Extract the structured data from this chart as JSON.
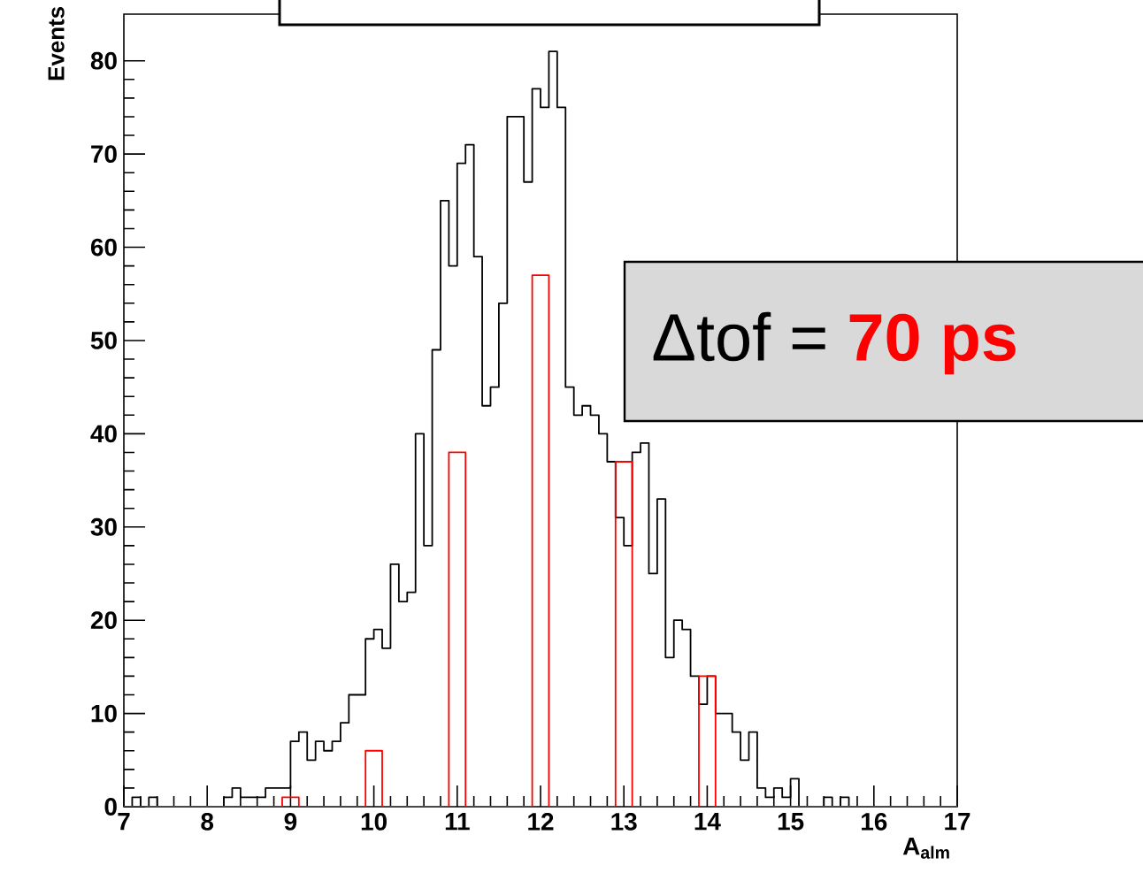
{
  "chart_data": {
    "type": "histogram",
    "xlabel": "A$_{alm}$",
    "ylabel": "Events",
    "xlim": [
      7,
      17
    ],
    "ylim": [
      0,
      85
    ],
    "xticks": [
      7,
      8,
      9,
      10,
      11,
      12,
      13,
      14,
      15,
      16,
      17
    ],
    "yticks": [
      0,
      10,
      20,
      30,
      40,
      50,
      60,
      70,
      80
    ],
    "grid": false,
    "marker": "none",
    "annotations": [
      "Δtof =",
      "70 ps"
    ],
    "bins": [
      7.0,
      7.1,
      7.2,
      7.3,
      7.4,
      7.5,
      7.6,
      7.7,
      7.8,
      7.9,
      8.0,
      8.1,
      8.2,
      8.3,
      8.4,
      8.5,
      8.6,
      8.7,
      8.8,
      8.9,
      9.0,
      9.1,
      9.2,
      9.3,
      9.4,
      9.5,
      9.6,
      9.7,
      9.8,
      9.9,
      10.0,
      10.1,
      10.2,
      10.3,
      10.4,
      10.5,
      10.6,
      10.7,
      10.8,
      10.9,
      11.0,
      11.1,
      11.2,
      11.3,
      11.4,
      11.5,
      11.6,
      11.7,
      11.8,
      11.9,
      12.0,
      12.1,
      12.2,
      12.3,
      12.4,
      12.5,
      12.6,
      12.7,
      12.8,
      12.9,
      13.0,
      13.1,
      13.2,
      13.3,
      13.4,
      13.5,
      13.6,
      13.7,
      13.8,
      13.9,
      14.0,
      14.1,
      14.2,
      14.3,
      14.4,
      14.5,
      14.6,
      14.7,
      14.8,
      14.9,
      15.0,
      15.1,
      15.2,
      15.3,
      15.4,
      15.5,
      15.6,
      15.7,
      15.8,
      15.9,
      16.0,
      16.1,
      16.2,
      16.3,
      16.4,
      16.5,
      16.6,
      16.7,
      16.8,
      16.9,
      17.0
    ],
    "series": [
      {
        "color": "#000000",
        "values": [
          0,
          1,
          0,
          1,
          0,
          0,
          0,
          0,
          0,
          0,
          0,
          0,
          1,
          2,
          1,
          1,
          1,
          2,
          2,
          2,
          7,
          8,
          5,
          7,
          6,
          7,
          9,
          12,
          12,
          18,
          19,
          17,
          26,
          22,
          23,
          40,
          28,
          49,
          65,
          58,
          69,
          71,
          59,
          43,
          45,
          54,
          74,
          74,
          67,
          77,
          75,
          81,
          75,
          45,
          42,
          43,
          42,
          40,
          37,
          31,
          28,
          38,
          39,
          25,
          33,
          16,
          20,
          19,
          14,
          11,
          14,
          10,
          10,
          8,
          5,
          8,
          2,
          1,
          2,
          1,
          3,
          0,
          0,
          0,
          1,
          0,
          1,
          0,
          0,
          0,
          0,
          0,
          0,
          0,
          0,
          0,
          0,
          0,
          0,
          0
        ]
      },
      {
        "color": "#ff0000",
        "values": [
          0,
          0,
          0,
          0,
          0,
          0,
          0,
          0,
          0,
          0,
          0,
          0,
          0,
          0,
          0,
          0,
          0,
          0,
          0,
          1,
          1,
          0,
          0,
          0,
          0,
          0,
          0,
          0,
          0,
          6,
          6,
          0,
          0,
          0,
          0,
          0,
          0,
          0,
          0,
          38,
          38,
          0,
          0,
          0,
          0,
          0,
          0,
          0,
          0,
          57,
          57,
          0,
          0,
          0,
          0,
          0,
          0,
          0,
          0,
          37,
          37,
          0,
          0,
          0,
          0,
          0,
          0,
          0,
          0,
          14,
          14,
          0,
          0,
          0,
          0,
          0,
          0,
          0,
          0,
          0,
          0,
          0,
          0,
          0,
          0,
          0,
          0,
          0,
          0,
          0,
          0,
          0,
          0,
          0,
          0,
          0,
          0,
          0,
          0,
          0
        ]
      }
    ]
  }
}
